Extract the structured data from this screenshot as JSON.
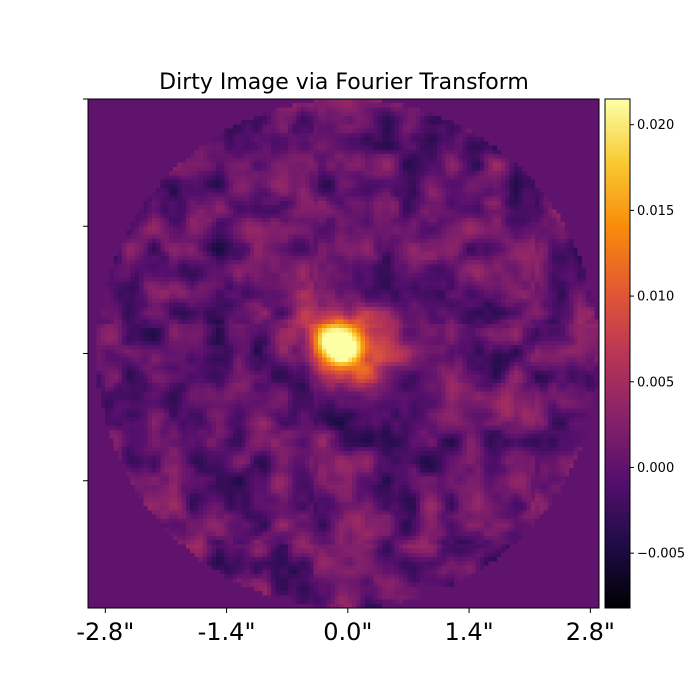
{
  "chart_data": {
    "type": "heatmap",
    "title": "Dirty Image via Fourier Transform",
    "xlabel": "",
    "ylabel": "",
    "x_ticks": [
      "-2.8\"",
      "-1.4\"",
      "0.0\"",
      "1.4\"",
      "2.8\""
    ],
    "x_tick_values": [
      -2.8,
      -1.4,
      0.0,
      1.4,
      2.8
    ],
    "xlim": [
      -3.0,
      2.9
    ],
    "ylim": [
      -2.9,
      2.9
    ],
    "y_tick_values": [
      -1.45,
      0.0,
      1.45,
      2.9
    ],
    "grid": false,
    "colormap": "inferno",
    "colorbar": {
      "range": [
        -0.0082,
        0.0215
      ],
      "ticks": [
        "−0.005",
        "0.000",
        "0.005",
        "0.010",
        "0.015",
        "0.020"
      ],
      "tick_values": [
        -0.005,
        0.0,
        0.005,
        0.01,
        0.015,
        0.02
      ]
    },
    "aperture_radius_arcsec": 2.9,
    "outside_value": 0.0,
    "bright_source": {
      "x_arcsec": -0.1,
      "y_arcsec": 0.1,
      "peak_value": 0.021
    }
  }
}
